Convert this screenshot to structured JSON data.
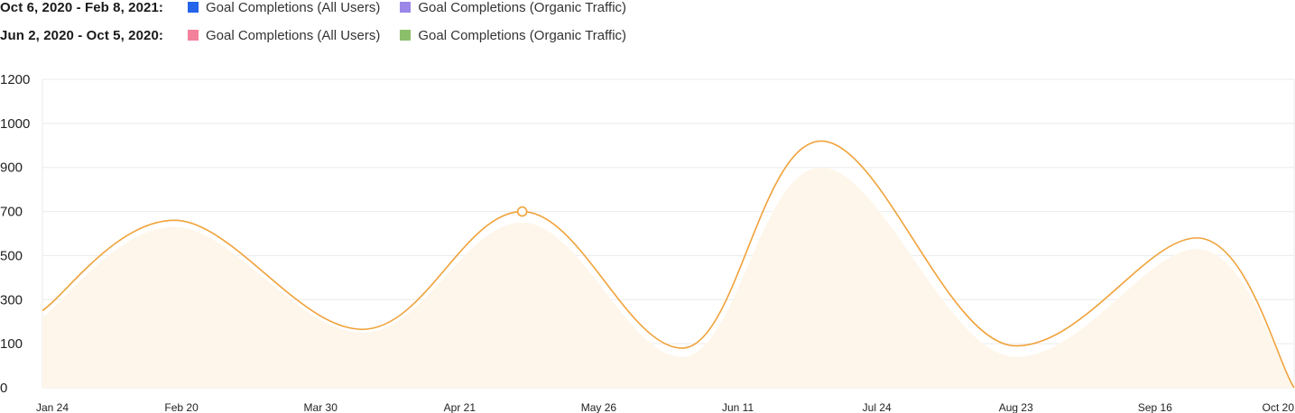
{
  "legend": {
    "rows": [
      {
        "period": "Oct 6, 2020 - Feb 8, 2021:",
        "items": [
          {
            "label": "Goal Completions (All Users)",
            "color": "#2563eb"
          },
          {
            "label": "Goal Completions (Organic Traffic)",
            "color": "#9b87e8"
          }
        ]
      },
      {
        "period": "Jun 2, 2020 - Oct 5, 2020:",
        "items": [
          {
            "label": "Goal Completions (All Users)",
            "color": "#f4819c"
          },
          {
            "label": "Goal Completions (Organic Traffic)",
            "color": "#8cbf6a"
          }
        ]
      }
    ]
  },
  "chart_data": {
    "type": "area",
    "y_ticks": [
      0,
      100,
      300,
      500,
      700,
      900,
      1000,
      1200
    ],
    "x_labels": [
      "Jan 24",
      "Feb 20",
      "Mar 30",
      "Apr 21",
      "May 26",
      "Jun 11",
      "Jul 24",
      "Aug 23",
      "Sep 16",
      "Oct 20"
    ],
    "grid": true,
    "colors": {
      "line": "#f0a23a",
      "fill": "#fef6ea",
      "grid": "#ebebeb"
    },
    "series": [
      {
        "values": [
          {
            "x": 0.0,
            "y": 250
          },
          {
            "x": 0.95,
            "y": 660
          },
          {
            "x": 2.3,
            "y": 165
          },
          {
            "x": 3.45,
            "y": 700
          },
          {
            "x": 4.6,
            "y": 90
          },
          {
            "x": 5.6,
            "y": 960
          },
          {
            "x": 7.0,
            "y": 95
          },
          {
            "x": 8.3,
            "y": 580
          },
          {
            "x": 9.0,
            "y": 0
          }
        ],
        "highlight_index": 3
      },
      {
        "values": [
          {
            "x": 0.0,
            "y": 220
          },
          {
            "x": 0.95,
            "y": 630
          },
          {
            "x": 2.3,
            "y": 150
          },
          {
            "x": 3.45,
            "y": 650
          },
          {
            "x": 4.6,
            "y": 70
          },
          {
            "x": 5.6,
            "y": 900
          },
          {
            "x": 7.0,
            "y": 70
          },
          {
            "x": 8.3,
            "y": 530
          },
          {
            "x": 9.0,
            "y": 0
          }
        ]
      }
    ]
  }
}
